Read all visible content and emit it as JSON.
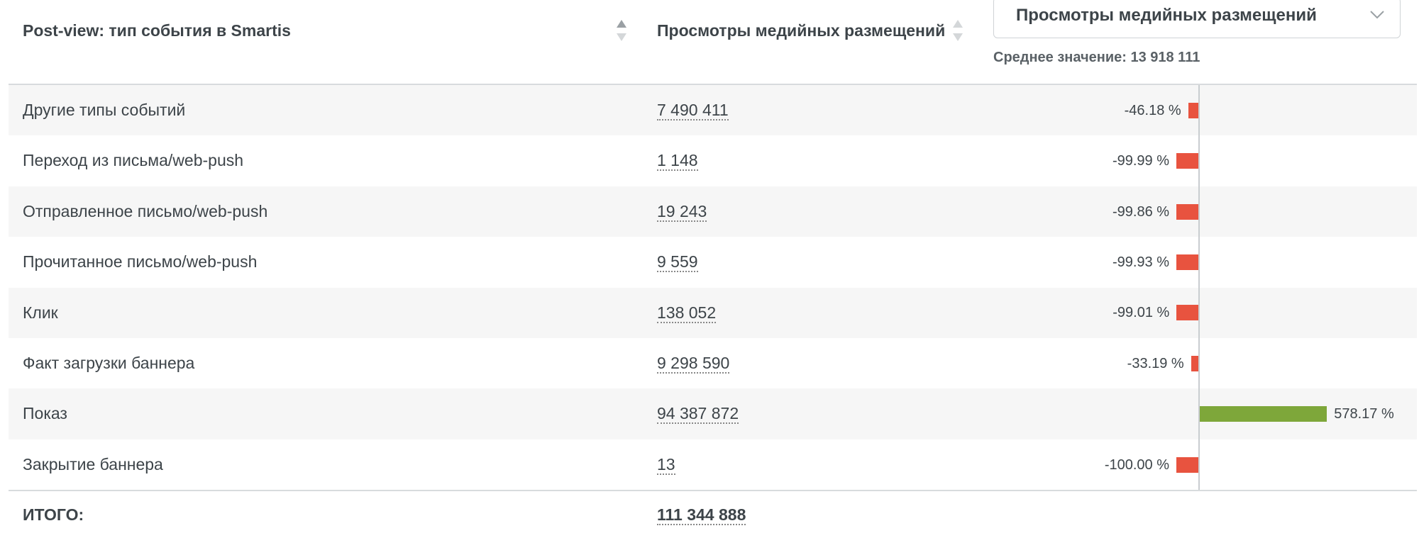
{
  "header": {
    "column_1": "Post-view: тип события в Smartis",
    "column_2": "Просмотры медийных размещений",
    "dropdown": "Просмотры медийных размещений",
    "average": "Среднее значение: 13 918 111"
  },
  "table": {
    "rows": [
      {
        "label": "Другие типы событий",
        "value": "7 490 411",
        "deviation": -46.18,
        "deviation_label": "-46.18 %"
      },
      {
        "label": "Переход из письма/web-push",
        "value": "1 148",
        "deviation": -99.99,
        "deviation_label": "-99.99 %"
      },
      {
        "label": "Отправленное письмо/web-push",
        "value": "19 243",
        "deviation": -99.86,
        "deviation_label": "-99.86 %"
      },
      {
        "label": "Прочитанное письмо/web-push",
        "value": "9 559",
        "deviation": -99.93,
        "deviation_label": "-99.93 %"
      },
      {
        "label": "Клик",
        "value": "138 052",
        "deviation": -99.01,
        "deviation_label": "-99.01 %"
      },
      {
        "label": "Факт загрузки баннера",
        "value": "9 298 590",
        "deviation": -33.19,
        "deviation_label": "-33.19 %"
      },
      {
        "label": "Показ",
        "value": "94 387 872",
        "deviation": 578.17,
        "deviation_label": "578.17 %"
      },
      {
        "label": "Закрытие баннера",
        "value": "13",
        "deviation": -100.0,
        "deviation_label": "-100.00 %"
      }
    ],
    "total": {
      "label": "ИТОГО:",
      "value": "111 344 888"
    }
  },
  "colors": {
    "negative": "#e8533f",
    "positive": "#7ea73a"
  }
}
